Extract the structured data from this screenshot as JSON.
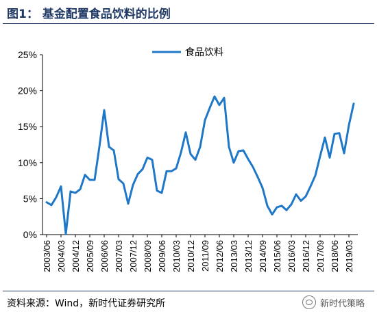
{
  "header": {
    "title": "图1：  基金配置食品饮料的比例"
  },
  "footer": {
    "source": "资料来源：Wind，新时代证券研究所",
    "watermark": "新时代策略",
    "watermark_icon": "wechat-logo-icon"
  },
  "chart_data": {
    "type": "line",
    "title": "",
    "xlabel": "",
    "ylabel": "",
    "ylim": [
      0,
      25
    ],
    "yticks": [
      "0%",
      "5%",
      "10%",
      "15%",
      "20%",
      "25%"
    ],
    "grid": false,
    "legend_position": "top",
    "color": "#1f77c8",
    "x_tick_labels": [
      "2003/06",
      "2004/03",
      "2004/12",
      "2005/09",
      "2006/06",
      "2007/03",
      "2007/12",
      "2008/09",
      "2009/06",
      "2010/03",
      "2010/12",
      "2011/09",
      "2012/06",
      "2013/03",
      "2013/12",
      "2014/09",
      "2015/06",
      "2016/03",
      "2016/12",
      "2017/09",
      "2018/06",
      "2019/03"
    ],
    "x": [
      "2003/06",
      "2003/09",
      "2003/12",
      "2004/03",
      "2004/06",
      "2004/09",
      "2004/12",
      "2005/03",
      "2005/06",
      "2005/09",
      "2005/12",
      "2006/03",
      "2006/06",
      "2006/09",
      "2006/12",
      "2007/03",
      "2007/06",
      "2007/09",
      "2007/12",
      "2008/03",
      "2008/06",
      "2008/09",
      "2008/12",
      "2009/03",
      "2009/06",
      "2009/09",
      "2009/12",
      "2010/03",
      "2010/06",
      "2010/09",
      "2010/12",
      "2011/03",
      "2011/06",
      "2011/09",
      "2011/12",
      "2012/03",
      "2012/06",
      "2012/09",
      "2012/12",
      "2013/03",
      "2013/06",
      "2013/09",
      "2013/12",
      "2014/03",
      "2014/06",
      "2014/09",
      "2014/12",
      "2015/03",
      "2015/06",
      "2015/09",
      "2015/12",
      "2016/03",
      "2016/06",
      "2016/09",
      "2016/12",
      "2017/03",
      "2017/06",
      "2017/09",
      "2017/12",
      "2018/03",
      "2018/06",
      "2018/09",
      "2018/12",
      "2019/03",
      "2019/06"
    ],
    "series": [
      {
        "name": "食品饮料",
        "values": [
          4.5,
          4.1,
          5.2,
          6.7,
          0.1,
          6.0,
          5.8,
          6.3,
          8.3,
          7.6,
          7.6,
          12.2,
          17.3,
          12.2,
          11.7,
          7.7,
          7.1,
          4.3,
          6.9,
          8.4,
          9.1,
          10.7,
          10.4,
          6.1,
          5.8,
          8.8,
          8.8,
          9.2,
          11.4,
          14.2,
          11.2,
          10.4,
          12.2,
          15.9,
          17.6,
          19.2,
          18.0,
          19.0,
          12.2,
          10.0,
          11.6,
          11.7,
          10.5,
          9.4,
          8.0,
          6.5,
          4.0,
          2.8,
          3.8,
          4.0,
          3.4,
          4.2,
          5.6,
          4.7,
          5.3,
          6.7,
          8.2,
          10.9,
          13.5,
          10.7,
          14.0,
          14.1,
          11.3,
          15.2,
          18.2
        ]
      }
    ]
  }
}
